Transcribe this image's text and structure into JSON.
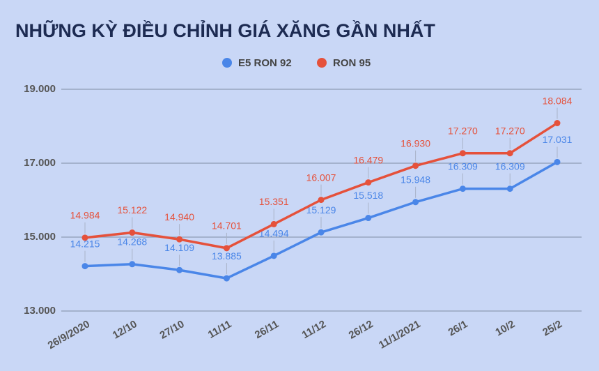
{
  "chart_data": {
    "type": "line",
    "title": "NHỮNG KỲ ĐIỀU CHỈNH GIÁ XĂNG GẦN NHẤT",
    "categories": [
      "26/9/2020",
      "12/10",
      "27/10",
      "11/11",
      "26/11",
      "11/12",
      "26/12",
      "11/1/2021",
      "26/1",
      "10/2",
      "25/2"
    ],
    "series": [
      {
        "name": "E5 RON 92",
        "color": "#4a86e8",
        "values": [
          14215,
          14268,
          14109,
          13885,
          14494,
          15129,
          15518,
          15948,
          16309,
          16309,
          17031
        ],
        "value_labels": [
          "14.215",
          "14.268",
          "14.109",
          "13.885",
          "14.494",
          "15.129",
          "15.518",
          "15.948",
          "16.309",
          "16.309",
          "17.031"
        ]
      },
      {
        "name": "RON 95",
        "color": "#e5513b",
        "values": [
          14984,
          15122,
          14940,
          14701,
          15351,
          16007,
          16479,
          16930,
          17270,
          17270,
          18084
        ],
        "value_labels": [
          "14.984",
          "15.122",
          "14.940",
          "14.701",
          "15.351",
          "16.007",
          "16.479",
          "16.930",
          "17.270",
          "17.270",
          "18.084"
        ]
      }
    ],
    "ylim": [
      13000,
      19000
    ],
    "yticks": [
      {
        "value": 13000,
        "label": "13.000"
      },
      {
        "value": 15000,
        "label": "15.000"
      },
      {
        "value": 17000,
        "label": "17.000"
      },
      {
        "value": 19000,
        "label": "19.000"
      }
    ],
    "grid": true,
    "legend": "top"
  }
}
